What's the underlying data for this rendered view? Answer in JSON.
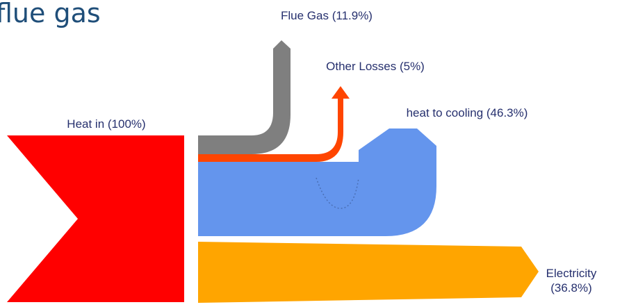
{
  "title": "flue gas",
  "nodes": [
    {
      "label": "Heat in (100%)"
    },
    {
      "label": "Flue Gas (11.9%)"
    },
    {
      "label": "Other Losses (5%)"
    },
    {
      "label": "heat to cooling (46.3%)"
    },
    {
      "label": [
        "Electricity",
        "(36.8%)"
      ]
    }
  ]
}
